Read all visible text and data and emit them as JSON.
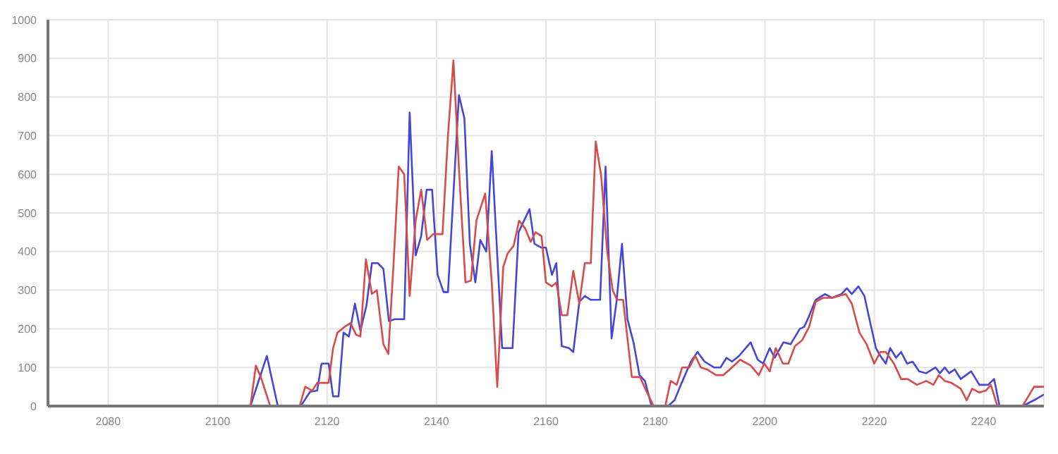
{
  "chart_data": {
    "type": "line",
    "xlim": [
      2069,
      2251
    ],
    "xticks": [
      2080,
      2100,
      2120,
      2140,
      2160,
      2180,
      2200,
      2220,
      2240
    ],
    "ylim": [
      0,
      1000
    ],
    "yticks": [
      0,
      100,
      200,
      300,
      400,
      500,
      600,
      700,
      800,
      900,
      1000
    ],
    "grid": true,
    "marker": "none",
    "line_style": "solid",
    "series": [
      {
        "color": "#4646d6",
        "x": [
          2069,
          2106,
          2109,
          2111,
          2115.2,
          2116.9,
          2118.2,
          2119,
          2120.3,
          2121.1,
          2122.1,
          2123,
          2124,
          2125.1,
          2126.1,
          2127.2,
          2128.2,
          2129.3,
          2130.3,
          2131.3,
          2132.4,
          2134.1,
          2135.1,
          2136.2,
          2137.2,
          2138.2,
          2139.2,
          2140.2,
          2141.3,
          2142.1,
          2143.1,
          2144.1,
          2145.1,
          2146.1,
          2147.1,
          2148,
          2149.1,
          2150.1,
          2152,
          2153.9,
          2155,
          2157,
          2157.9,
          2159.2,
          2160,
          2161.1,
          2161.9,
          2162.9,
          2164.2,
          2165,
          2166.1,
          2167.1,
          2168.2,
          2169.9,
          2170.9,
          2172,
          2172.9,
          2173.9,
          2174.9,
          2176,
          2177.1,
          2178.1,
          2179.3,
          2182.3,
          2183.5,
          2184.8,
          2186.5,
          2187.7,
          2189,
          2190.7,
          2191.9,
          2193,
          2194,
          2195.3,
          2197.4,
          2198.7,
          2199.7,
          2200.9,
          2201.8,
          2203.4,
          2204.7,
          2206.4,
          2207.2,
          2208,
          2209.3,
          2211,
          2212.3,
          2214,
          2215,
          2215.9,
          2217.1,
          2218.2,
          2219.2,
          2220.3,
          2221.1,
          2222.1,
          2222.9,
          2224,
          2224.9,
          2226,
          2227,
          2228.2,
          2229.5,
          2231.2,
          2232,
          2232.9,
          2233.7,
          2234.7,
          2235.8,
          2237.7,
          2239.2,
          2240.8,
          2241.9,
          2242.9,
          2247.1,
          2249.2,
          2251
        ],
        "values": [
          0,
          0,
          130,
          0,
          0,
          37,
          40,
          110,
          110,
          25,
          25,
          190,
          180,
          265,
          195,
          260,
          370,
          370,
          355,
          220,
          225,
          225,
          760,
          390,
          440,
          560,
          560,
          340,
          295,
          295,
          550,
          805,
          745,
          420,
          320,
          430,
          400,
          660,
          150,
          150,
          450,
          510,
          420,
          410,
          410,
          340,
          370,
          155,
          150,
          140,
          270,
          285,
          275,
          275,
          620,
          175,
          270,
          420,
          225,
          165,
          80,
          65,
          0,
          0,
          15,
          60,
          115,
          140,
          115,
          100,
          100,
          125,
          115,
          130,
          165,
          120,
          110,
          150,
          125,
          165,
          160,
          200,
          205,
          230,
          275,
          290,
          280,
          290,
          305,
          290,
          310,
          285,
          220,
          150,
          130,
          110,
          150,
          125,
          140,
          110,
          115,
          90,
          85,
          100,
          85,
          100,
          85,
          95,
          70,
          90,
          55,
          55,
          70,
          0,
          0,
          15,
          30
        ]
      },
      {
        "color": "#d94a4a",
        "x": [
          2069,
          2106,
          2107,
          2107.9,
          2109.6,
          2115,
          2116,
          2117.3,
          2118.2,
          2120.3,
          2121.1,
          2121.9,
          2123.2,
          2124.3,
          2125.3,
          2126.1,
          2127.1,
          2128.2,
          2129.1,
          2130.3,
          2131.2,
          2132.2,
          2133.1,
          2134.1,
          2135.1,
          2136.2,
          2137.2,
          2138.3,
          2139.4,
          2141.1,
          2142.1,
          2143.1,
          2144.2,
          2145.3,
          2146.3,
          2147.3,
          2148.9,
          2150.1,
          2151.1,
          2152.2,
          2153,
          2154.1,
          2155.1,
          2156.2,
          2157.2,
          2158.1,
          2159.2,
          2160,
          2161.1,
          2161.9,
          2162.9,
          2163.9,
          2165,
          2166.1,
          2167.1,
          2168.2,
          2169.1,
          2170.1,
          2171.2,
          2172.2,
          2173,
          2174.1,
          2175.7,
          2177.2,
          2178.3,
          2179.7,
          2181.8,
          2182.8,
          2183.9,
          2184.9,
          2186.2,
          2187.3,
          2188.3,
          2189.4,
          2191.1,
          2192.4,
          2193.6,
          2195.5,
          2197.4,
          2198.9,
          2199.9,
          2200.9,
          2202,
          2203.3,
          2204.3,
          2205.5,
          2206.8,
          2208.1,
          2209.3,
          2210.6,
          2212.3,
          2214.8,
          2215.9,
          2217.3,
          2218.6,
          2220,
          2221.1,
          2222.1,
          2223.6,
          2224.9,
          2226.1,
          2227.8,
          2229.5,
          2230.8,
          2231.8,
          2232.9,
          2234.1,
          2235.8,
          2236.9,
          2237.9,
          2239.2,
          2240.4,
          2241.3,
          2242.5,
          2247.1,
          2249.2,
          2251
        ],
        "values": [
          0,
          0,
          105,
          75,
          0,
          0,
          50,
          40,
          60,
          60,
          150,
          190,
          205,
          215,
          185,
          180,
          380,
          290,
          300,
          160,
          135,
          380,
          620,
          600,
          285,
          480,
          560,
          430,
          445,
          445,
          700,
          895,
          590,
          320,
          325,
          480,
          550,
          320,
          50,
          360,
          395,
          415,
          480,
          460,
          425,
          450,
          440,
          320,
          310,
          320,
          235,
          235,
          350,
          265,
          370,
          370,
          685,
          595,
          400,
          300,
          275,
          275,
          75,
          75,
          40,
          0,
          0,
          65,
          55,
          100,
          100,
          130,
          100,
          95,
          80,
          80,
          95,
          120,
          105,
          80,
          110,
          90,
          150,
          110,
          110,
          155,
          170,
          205,
          270,
          280,
          280,
          290,
          265,
          190,
          160,
          110,
          140,
          140,
          110,
          70,
          70,
          55,
          65,
          55,
          80,
          65,
          60,
          45,
          15,
          45,
          35,
          40,
          55,
          0,
          0,
          50,
          50
        ]
      }
    ]
  }
}
